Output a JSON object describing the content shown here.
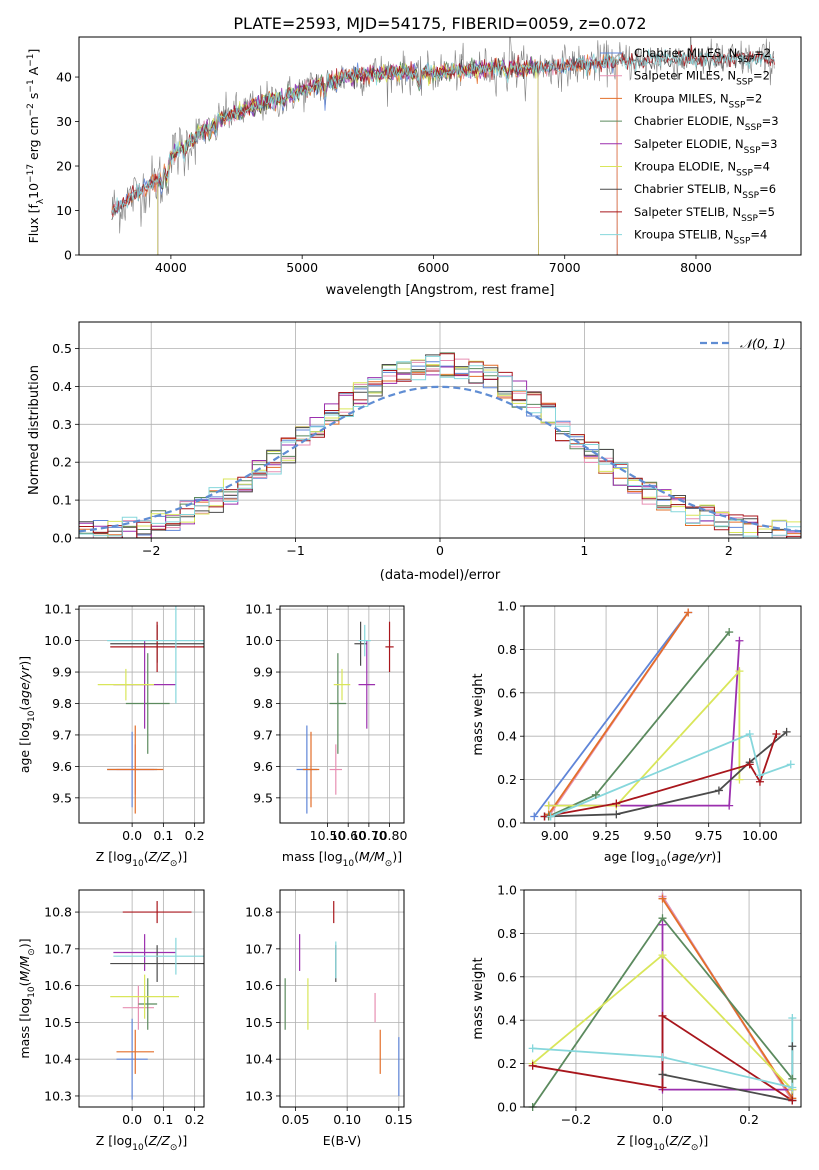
{
  "title": "PLATE=2593, MJD=54175, FIBERID=0059, z=0.072",
  "colors": {
    "Chabrier MILES": "#5f85d8",
    "Salpeter MILES": "#e78fb3",
    "Kroupa MILES": "#e36f2a",
    "Chabrier ELODIE": "#5b8a5e",
    "Salpeter ELODIE": "#9b2fae",
    "Kroupa ELODIE": "#d9e65a",
    "Chabrier STELIB": "#4b4b4b",
    "Salpeter STELIB": "#a8161c",
    "Kroupa STELIB": "#86d7dc",
    "gaussian": "#5f8dd3"
  },
  "chart_data": [
    {
      "type": "line",
      "panel": "spectrum",
      "xlabel": "wavelength [Angstrom, rest frame]",
      "ylabel": "Flux [fλ10⁻¹⁷ erg cm⁻² s⁻¹ A⁻¹]",
      "xlim": [
        3300,
        8800
      ],
      "ylim": [
        0,
        49
      ],
      "xticks": [
        4000,
        5000,
        6000,
        7000,
        8000
      ],
      "yticks": [
        0,
        10,
        20,
        30,
        40
      ],
      "legend_position": "top-right",
      "series": [
        {
          "name": "Chabrier MILES, N",
          "sub": "SSP",
          "suffix": "=2",
          "key": "Chabrier MILES",
          "xrange": [
            3550,
            7400
          ]
        },
        {
          "name": "Salpeter MILES, N",
          "sub": "SSP",
          "suffix": "=2",
          "key": "Salpeter MILES",
          "xrange": [
            3550,
            7400
          ]
        },
        {
          "name": "Kroupa MILES, N",
          "sub": "SSP",
          "suffix": "=2",
          "key": "Kroupa MILES",
          "xrange": [
            3550,
            7400
          ]
        },
        {
          "name": "Chabrier ELODIE, N",
          "sub": "SSP",
          "suffix": "=3",
          "key": "Chabrier ELODIE",
          "xrange": [
            3900,
            6800
          ]
        },
        {
          "name": "Salpeter ELODIE, N",
          "sub": "SSP",
          "suffix": "=3",
          "key": "Salpeter ELODIE",
          "xrange": [
            3900,
            6800
          ]
        },
        {
          "name": "Kroupa ELODIE, N",
          "sub": "SSP",
          "suffix": "=4",
          "key": "Kroupa ELODIE",
          "xrange": [
            3900,
            6800
          ]
        },
        {
          "name": "Chabrier STELIB, N",
          "sub": "SSP",
          "suffix": "=6",
          "key": "Chabrier STELIB",
          "xrange": [
            3550,
            8600
          ]
        },
        {
          "name": "Salpeter STELIB, N",
          "sub": "SSP",
          "suffix": "=5",
          "key": "Salpeter STELIB",
          "xrange": [
            3550,
            8600
          ]
        },
        {
          "name": "Kroupa STELIB, N",
          "sub": "SSP",
          "suffix": "=4",
          "key": "Kroupa STELIB",
          "xrange": [
            3550,
            8600
          ]
        }
      ],
      "continuum": [
        [
          3550,
          10
        ],
        [
          3700,
          13
        ],
        [
          3900,
          17
        ],
        [
          4000,
          22
        ],
        [
          4200,
          27
        ],
        [
          4400,
          31
        ],
        [
          4700,
          34
        ],
        [
          5000,
          37
        ],
        [
          5300,
          40
        ],
        [
          5600,
          41
        ],
        [
          6000,
          41
        ],
        [
          6400,
          42
        ],
        [
          6800,
          42
        ],
        [
          7200,
          43
        ],
        [
          7600,
          44
        ],
        [
          8000,
          44
        ],
        [
          8600,
          44
        ]
      ],
      "data_trace_color": "#808080"
    },
    {
      "type": "line",
      "panel": "residuals",
      "xlabel": "(data-model)/error",
      "ylabel": "Normed distribution",
      "xlim": [
        -2.5,
        2.5
      ],
      "ylim": [
        0,
        0.57
      ],
      "xticks": [
        -2,
        -1,
        0,
        1,
        2
      ],
      "xtick_labels": [
        "−2",
        "−1",
        "0",
        "1",
        "2"
      ],
      "yticks": [
        0,
        0.1,
        0.2,
        0.3,
        0.4,
        0.5
      ],
      "ytick_labels": [
        "0.0",
        "0.1",
        "0.2",
        "0.3",
        "0.4",
        "0.5"
      ],
      "grid": true,
      "legend_position": "top-right",
      "legend_label": "𝒩(0, 1)",
      "bin_width": 0.1,
      "histograms": [
        "Chabrier MILES",
        "Salpeter MILES",
        "Kroupa MILES",
        "Chabrier ELODIE",
        "Salpeter ELODIE",
        "Kroupa ELODIE",
        "Chabrier STELIB",
        "Salpeter STELIB",
        "Kroupa STELIB"
      ]
    },
    {
      "type": "scatter",
      "panel": "age-vs-Z",
      "xlabel": "Z [log10(Z/Z⊙)]",
      "ylabel": "age [log10(age/yr)]",
      "xlim": [
        -0.17,
        0.23
      ],
      "ylim": [
        9.42,
        10.11
      ],
      "xticks": [
        0.0,
        0.1,
        0.2
      ],
      "xtick_labels": [
        "0.0",
        "0.1",
        "0.2"
      ],
      "yticks": [
        9.5,
        9.6,
        9.7,
        9.8,
        9.9,
        10.0,
        10.1
      ],
      "ytick_labels": [
        "9.5",
        "9.6",
        "9.7",
        "9.8",
        "9.9",
        "10.0",
        "10.1"
      ],
      "points": [
        {
          "key": "Chabrier MILES",
          "x": 0.0,
          "xerr": 0.08,
          "y": 9.59,
          "yerr": 0.12
        },
        {
          "key": "Salpeter MILES",
          "x": 0.01,
          "xerr": 0.06,
          "y": 9.59,
          "yerr": 0.08
        },
        {
          "key": "Kroupa MILES",
          "x": 0.01,
          "xerr": 0.09,
          "y": 9.59,
          "yerr": 0.14
        },
        {
          "key": "Chabrier ELODIE",
          "x": 0.05,
          "xerr": 0.07,
          "y": 9.8,
          "yerr": 0.16
        },
        {
          "key": "Salpeter ELODIE",
          "x": 0.04,
          "xerr": 0.1,
          "y": 9.86,
          "yerr": 0.14
        },
        {
          "key": "Kroupa ELODIE",
          "x": -0.02,
          "xerr": 0.09,
          "y": 9.86,
          "yerr": 0.05
        },
        {
          "key": "Chabrier STELIB",
          "x": 0.08,
          "xerr": 0.15,
          "y": 9.99,
          "yerr": 0.06
        },
        {
          "key": "Salpeter STELIB",
          "x": 0.08,
          "xerr": 0.15,
          "y": 9.98,
          "yerr": 0.08
        },
        {
          "key": "Kroupa STELIB",
          "x": 0.14,
          "xerr": 0.22,
          "y": 10.0,
          "yerr": 0.2
        }
      ]
    },
    {
      "type": "scatter",
      "panel": "age-vs-mass",
      "xlabel": "mass [log10(M/M⊙)]",
      "xlim": [
        10.27,
        10.87
      ],
      "ylim": [
        9.42,
        10.11
      ],
      "xticks": [
        10.5,
        10.6,
        10.7,
        10.8
      ],
      "xtick_labels": [
        "10.50",
        "10.60",
        "10.70",
        "10.80"
      ],
      "yticks": [
        9.5,
        9.6,
        9.7,
        9.8,
        9.9,
        10.0,
        10.1
      ],
      "ytick_labels": [
        "9.5",
        "9.6",
        "9.7",
        "9.8",
        "9.9",
        "10.0",
        "10.1"
      ],
      "points": [
        {
          "key": "Chabrier MILES",
          "x": 10.4,
          "xerr": 0.05,
          "y": 9.59,
          "yerr": 0.14
        },
        {
          "key": "Salpeter MILES",
          "x": 10.54,
          "xerr": 0.03,
          "y": 9.59,
          "yerr": 0.08
        },
        {
          "key": "Kroupa MILES",
          "x": 10.42,
          "xerr": 0.04,
          "y": 9.59,
          "yerr": 0.12
        },
        {
          "key": "Chabrier ELODIE",
          "x": 10.55,
          "xerr": 0.04,
          "y": 9.8,
          "yerr": 0.16
        },
        {
          "key": "Salpeter ELODIE",
          "x": 10.69,
          "xerr": 0.04,
          "y": 9.86,
          "yerr": 0.14
        },
        {
          "key": "Kroupa ELODIE",
          "x": 10.57,
          "xerr": 0.04,
          "y": 9.86,
          "yerr": 0.05
        },
        {
          "key": "Chabrier STELIB",
          "x": 10.66,
          "xerr": 0.03,
          "y": 9.99,
          "yerr": 0.07
        },
        {
          "key": "Salpeter STELIB",
          "x": 10.8,
          "xerr": 0.02,
          "y": 9.98,
          "yerr": 0.08
        },
        {
          "key": "Kroupa STELIB",
          "x": 10.68,
          "xerr": 0.03,
          "y": 10.0,
          "yerr": 0.05
        }
      ]
    },
    {
      "type": "line",
      "panel": "mass-weight-vs-age",
      "xlabel": "age [log10(age/yr)]",
      "ylabel": "mass weight",
      "xlim": [
        8.85,
        10.2
      ],
      "ylim": [
        0,
        1.0
      ],
      "xticks": [
        9.0,
        9.25,
        9.5,
        9.75,
        10.0
      ],
      "xtick_labels": [
        "9.00",
        "9.25",
        "9.50",
        "9.75",
        "10.00"
      ],
      "yticks": [
        0,
        0.2,
        0.4,
        0.6,
        0.8,
        1.0
      ],
      "ytick_labels": [
        "0.0",
        "0.2",
        "0.4",
        "0.6",
        "0.8",
        "1.0"
      ],
      "grid": true,
      "series": [
        {
          "key": "Chabrier MILES",
          "points": [
            [
              8.9,
              0.03
            ],
            [
              9.65,
              0.97
            ]
          ]
        },
        {
          "key": "Salpeter MILES",
          "points": [
            [
              8.97,
              0.03
            ],
            [
              9.65,
              0.97
            ]
          ]
        },
        {
          "key": "Kroupa MILES",
          "points": [
            [
              8.97,
              0.04
            ],
            [
              9.65,
              0.97
            ]
          ]
        },
        {
          "key": "Chabrier ELODIE",
          "points": [
            [
              8.97,
              0.03
            ],
            [
              9.2,
              0.13
            ],
            [
              9.85,
              0.88
            ]
          ]
        },
        {
          "key": "Salpeter ELODIE",
          "points": [
            [
              8.97,
              0.08
            ],
            [
              9.85,
              0.08
            ],
            [
              9.9,
              0.84
            ]
          ]
        },
        {
          "key": "Kroupa ELODIE",
          "points": [
            [
              8.97,
              0.08
            ],
            [
              9.3,
              0.08
            ],
            [
              9.9,
              0.7
            ],
            [
              9.9,
              0.2
            ]
          ]
        },
        {
          "key": "Chabrier STELIB",
          "points": [
            [
              8.95,
              0.03
            ],
            [
              9.3,
              0.04
            ],
            [
              9.8,
              0.15
            ],
            [
              9.95,
              0.28
            ],
            [
              10.13,
              0.42
            ]
          ]
        },
        {
          "key": "Salpeter STELIB",
          "points": [
            [
              8.95,
              0.03
            ],
            [
              9.3,
              0.09
            ],
            [
              9.95,
              0.27
            ],
            [
              10.0,
              0.19
            ],
            [
              10.08,
              0.41
            ]
          ]
        },
        {
          "key": "Kroupa STELIB",
          "points": [
            [
              8.98,
              0.03
            ],
            [
              9.95,
              0.41
            ],
            [
              10.0,
              0.22
            ],
            [
              10.15,
              0.27
            ]
          ]
        }
      ]
    },
    {
      "type": "scatter",
      "panel": "mass-vs-Z",
      "xlabel": "Z [log10(Z/Z⊙)]",
      "ylabel": "mass [log10(M/M⊙)]",
      "xlim": [
        -0.17,
        0.23
      ],
      "ylim": [
        10.27,
        10.86
      ],
      "xticks": [
        0.0,
        0.1,
        0.2
      ],
      "xtick_labels": [
        "0.0",
        "0.1",
        "0.2"
      ],
      "yticks": [
        10.3,
        10.4,
        10.5,
        10.6,
        10.7,
        10.8
      ],
      "ytick_labels": [
        "10.3",
        "10.4",
        "10.5",
        "10.6",
        "10.7",
        "10.8"
      ],
      "points": [
        {
          "key": "Chabrier MILES",
          "x": 0.0,
          "xerr": 0.05,
          "y": 10.4,
          "yerr": 0.11
        },
        {
          "key": "Salpeter MILES",
          "x": 0.02,
          "xerr": 0.05,
          "y": 10.54,
          "yerr": 0.06
        },
        {
          "key": "Kroupa MILES",
          "x": 0.01,
          "xerr": 0.06,
          "y": 10.42,
          "yerr": 0.06
        },
        {
          "key": "Chabrier ELODIE",
          "x": 0.05,
          "xerr": 0.03,
          "y": 10.55,
          "yerr": 0.07
        },
        {
          "key": "Salpeter ELODIE",
          "x": 0.04,
          "xerr": 0.1,
          "y": 10.69,
          "yerr": 0.05
        },
        {
          "key": "Kroupa ELODIE",
          "x": 0.04,
          "xerr": 0.11,
          "y": 10.57,
          "yerr": 0.06
        },
        {
          "key": "Chabrier STELIB",
          "x": 0.08,
          "xerr": 0.15,
          "y": 10.66,
          "yerr": 0.05
        },
        {
          "key": "Salpeter STELIB",
          "x": 0.08,
          "xerr": 0.11,
          "y": 10.8,
          "yerr": 0.03
        },
        {
          "key": "Kroupa STELIB",
          "x": 0.14,
          "xerr": 0.2,
          "y": 10.68,
          "yerr": 0.05
        }
      ]
    },
    {
      "type": "scatter",
      "panel": "mass-vs-EBV",
      "xlabel": "E(B-V)",
      "xlim": [
        0.035,
        0.155
      ],
      "ylim": [
        10.27,
        10.86
      ],
      "xticks": [
        0.05,
        0.1,
        0.15
      ],
      "xtick_labels": [
        "0.05",
        "0.10",
        "0.15"
      ],
      "yticks": [
        10.3,
        10.4,
        10.5,
        10.6,
        10.7,
        10.8
      ],
      "ytick_labels": [
        "10.3",
        "10.4",
        "10.5",
        "10.6",
        "10.7",
        "10.8"
      ],
      "points": [
        {
          "key": "Chabrier MILES",
          "x": 0.15,
          "xerr": 0.0,
          "y": 10.38,
          "yerr": 0.08
        },
        {
          "key": "Salpeter MILES",
          "x": 0.127,
          "xerr": 0.0,
          "y": 10.54,
          "yerr": 0.04
        },
        {
          "key": "Kroupa MILES",
          "x": 0.132,
          "xerr": 0.0,
          "y": 10.42,
          "yerr": 0.06
        },
        {
          "key": "Chabrier ELODIE",
          "x": 0.04,
          "xerr": 0.0,
          "y": 10.55,
          "yerr": 0.07
        },
        {
          "key": "Salpeter ELODIE",
          "x": 0.054,
          "xerr": 0.0,
          "y": 10.69,
          "yerr": 0.05
        },
        {
          "key": "Kroupa ELODIE",
          "x": 0.062,
          "xerr": 0.0,
          "y": 10.55,
          "yerr": 0.07
        },
        {
          "key": "Chabrier STELIB",
          "x": 0.089,
          "xerr": 0.0,
          "y": 10.66,
          "yerr": 0.05
        },
        {
          "key": "Salpeter STELIB",
          "x": 0.087,
          "xerr": 0.0,
          "y": 10.8,
          "yerr": 0.03
        },
        {
          "key": "Kroupa STELIB",
          "x": 0.089,
          "xerr": 0.0,
          "y": 10.67,
          "yerr": 0.05
        }
      ]
    },
    {
      "type": "line",
      "panel": "mass-weight-vs-Z",
      "xlabel": "Z [log10(Z/Z⊙)]",
      "ylabel": "mass weight",
      "xlim": [
        -0.32,
        0.32
      ],
      "ylim": [
        0,
        1.0
      ],
      "xticks": [
        -0.2,
        0.0,
        0.2
      ],
      "xtick_labels": [
        "−0.2",
        "0.0",
        "0.2"
      ],
      "yticks": [
        0,
        0.2,
        0.4,
        0.6,
        0.8,
        1.0
      ],
      "ytick_labels": [
        "0.0",
        "0.2",
        "0.4",
        "0.6",
        "0.8",
        "1.0"
      ],
      "grid": true,
      "series": [
        {
          "key": "Chabrier MILES",
          "points": [
            [
              0.0,
              0.97
            ],
            [
              0.3,
              0.03
            ]
          ]
        },
        {
          "key": "Salpeter MILES",
          "points": [
            [
              0.0,
              0.97
            ],
            [
              0.3,
              0.03
            ]
          ]
        },
        {
          "key": "Kroupa MILES",
          "points": [
            [
              0.0,
              0.96
            ],
            [
              0.3,
              0.04
            ]
          ]
        },
        {
          "key": "Chabrier ELODIE",
          "points": [
            [
              -0.3,
              0.0
            ],
            [
              0.0,
              0.87
            ],
            [
              0.3,
              0.13
            ]
          ]
        },
        {
          "key": "Salpeter ELODIE",
          "points": [
            [
              0.0,
              0.84
            ],
            [
              0.0,
              0.08
            ],
            [
              0.3,
              0.08
            ]
          ]
        },
        {
          "key": "Kroupa ELODIE",
          "points": [
            [
              -0.3,
              0.2
            ],
            [
              0.0,
              0.7
            ],
            [
              0.3,
              0.08
            ]
          ]
        },
        {
          "key": "Chabrier STELIB",
          "points": [
            [
              0.0,
              0.15
            ],
            [
              0.3,
              0.03
            ],
            [
              0.3,
              0.28
            ]
          ]
        },
        {
          "key": "Salpeter STELIB",
          "points": [
            [
              -0.3,
              0.19
            ],
            [
              0.0,
              0.09
            ],
            [
              0.0,
              0.42
            ],
            [
              0.3,
              0.03
            ]
          ]
        },
        {
          "key": "Kroupa STELIB",
          "points": [
            [
              -0.3,
              0.27
            ],
            [
              0.0,
              0.23
            ],
            [
              0.3,
              0.09
            ],
            [
              0.3,
              0.41
            ]
          ]
        }
      ]
    }
  ]
}
